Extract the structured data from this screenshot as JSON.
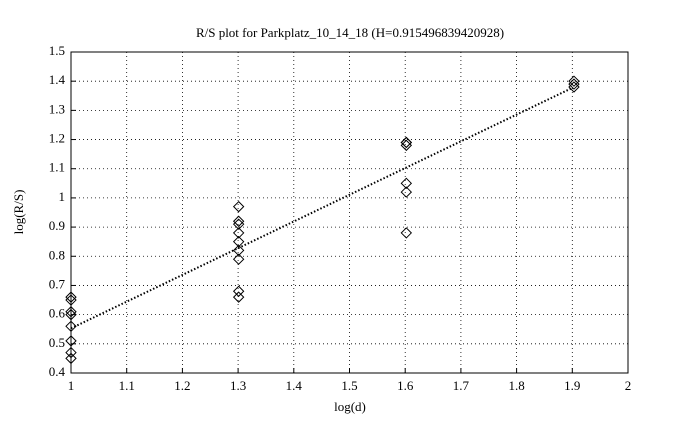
{
  "chart_data": {
    "type": "scatter",
    "title": "R/S plot for Parkplatz_10_14_18 (H=0.915496839420928)",
    "x_label": "log(d)",
    "y_label": "log(R/S)",
    "points": {
      "x": [
        1,
        1,
        1,
        1,
        1,
        1,
        1,
        1,
        1.301,
        1.301,
        1.301,
        1.301,
        1.301,
        1.301,
        1.301,
        1.301,
        1.301,
        1.602,
        1.602,
        1.602,
        1.602,
        1.602,
        1.602,
        1.903,
        1.903,
        1.903
      ],
      "values": [
        0.66,
        0.65,
        0.61,
        0.6,
        0.56,
        0.51,
        0.47,
        0.45,
        0.97,
        0.92,
        0.91,
        0.88,
        0.85,
        0.82,
        0.79,
        0.68,
        0.66,
        1.19,
        1.19,
        1.18,
        1.05,
        1.02,
        0.88,
        1.4,
        1.39,
        1.38
      ],
      "color": "#000000"
    },
    "fit": {
      "x": [
        1,
        1.9
      ],
      "values": [
        0.553,
        1.377
      ],
      "color": "#000000"
    },
    "xlim": [
      1,
      2
    ],
    "xticks": [
      1,
      1.1,
      1.2,
      1.3,
      1.4,
      1.5,
      1.6,
      1.7,
      1.8,
      1.9,
      2
    ],
    "ylim": [
      0.4,
      1.5
    ],
    "yticks": [
      0.4,
      0.5,
      0.6,
      0.7,
      0.8,
      0.9,
      1,
      1.1,
      1.2,
      1.3,
      1.4,
      1.5
    ],
    "grid": true
  }
}
